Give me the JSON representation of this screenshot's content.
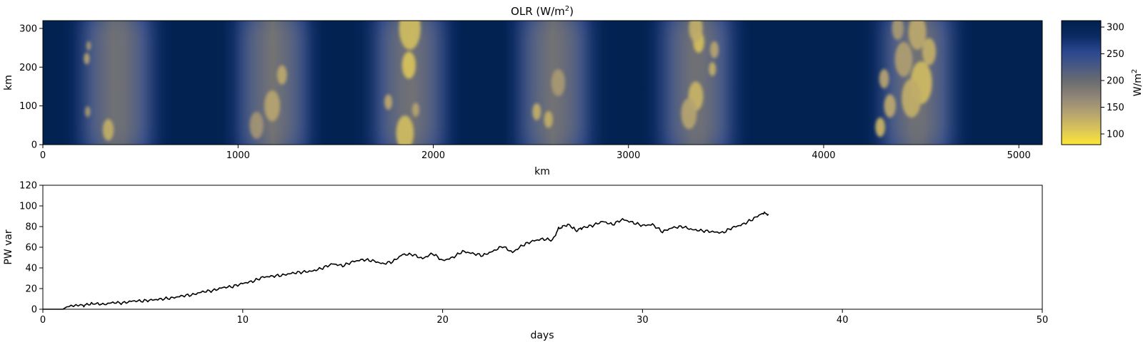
{
  "chart_data": [
    {
      "type": "heatmap",
      "title_main": "OLR (W/m",
      "title_sup": "2",
      "title_end": ")",
      "xlabel": "km",
      "ylabel": "km",
      "xlim": [
        0,
        5120
      ],
      "ylim": [
        0,
        320
      ],
      "xticks": [
        "0",
        "1000",
        "2000",
        "3000",
        "4000",
        "5000"
      ],
      "xtick_values": [
        0,
        1000,
        2000,
        3000,
        4000,
        5000
      ],
      "yticks": [
        "0",
        "100",
        "200",
        "300"
      ],
      "ytick_values": [
        0,
        100,
        200,
        300
      ],
      "colorbar": {
        "label_main": "W/m",
        "label_sup": "2",
        "range": [
          80,
          312
        ],
        "ticks": [
          "100",
          "150",
          "200",
          "250",
          "300"
        ],
        "tick_values": [
          100,
          150,
          200,
          250,
          300
        ],
        "colormap": "cividis (reversed)",
        "colors": [
          "#fde737",
          "#d9c45a",
          "#b6a46f",
          "#928877",
          "#6d6e6f",
          "#4a5a82",
          "#2a478f",
          "#0a2a63",
          "#00204d"
        ]
      },
      "convective_bands_x_km": [
        380,
        1180,
        1880,
        2620,
        3350,
        4480
      ],
      "cells": [
        {
          "x": 1880,
          "y": 300,
          "r": 55,
          "v": 118
        },
        {
          "x": 1875,
          "y": 205,
          "r": 35,
          "v": 112
        },
        {
          "x": 1855,
          "y": 30,
          "r": 45,
          "v": 118
        },
        {
          "x": 1770,
          "y": 110,
          "r": 20,
          "v": 135
        },
        {
          "x": 1910,
          "y": 90,
          "r": 18,
          "v": 140
        },
        {
          "x": 335,
          "y": 38,
          "r": 28,
          "v": 130
        },
        {
          "x": 225,
          "y": 222,
          "r": 15,
          "v": 140
        },
        {
          "x": 235,
          "y": 255,
          "r": 12,
          "v": 150
        },
        {
          "x": 230,
          "y": 85,
          "r": 14,
          "v": 150
        },
        {
          "x": 1225,
          "y": 180,
          "r": 25,
          "v": 135
        },
        {
          "x": 1175,
          "y": 100,
          "r": 40,
          "v": 140
        },
        {
          "x": 1095,
          "y": 50,
          "r": 35,
          "v": 155
        },
        {
          "x": 2530,
          "y": 85,
          "r": 22,
          "v": 130
        },
        {
          "x": 2590,
          "y": 65,
          "r": 22,
          "v": 130
        },
        {
          "x": 2640,
          "y": 160,
          "r": 35,
          "v": 150
        },
        {
          "x": 3360,
          "y": 265,
          "r": 28,
          "v": 115
        },
        {
          "x": 3345,
          "y": 125,
          "r": 38,
          "v": 125
        },
        {
          "x": 3310,
          "y": 80,
          "r": 40,
          "v": 140
        },
        {
          "x": 3440,
          "y": 245,
          "r": 22,
          "v": 140
        },
        {
          "x": 3345,
          "y": 300,
          "r": 35,
          "v": 130
        },
        {
          "x": 3430,
          "y": 195,
          "r": 18,
          "v": 130
        },
        {
          "x": 4500,
          "y": 160,
          "r": 55,
          "v": 120
        },
        {
          "x": 4450,
          "y": 120,
          "r": 50,
          "v": 130
        },
        {
          "x": 4340,
          "y": 100,
          "r": 30,
          "v": 135
        },
        {
          "x": 4310,
          "y": 170,
          "r": 25,
          "v": 140
        },
        {
          "x": 4410,
          "y": 220,
          "r": 45,
          "v": 145
        },
        {
          "x": 4540,
          "y": 240,
          "r": 35,
          "v": 130
        },
        {
          "x": 4290,
          "y": 45,
          "r": 25,
          "v": 125
        },
        {
          "x": 4480,
          "y": 290,
          "r": 45,
          "v": 135
        },
        {
          "x": 4380,
          "y": 300,
          "r": 30,
          "v": 150
        }
      ]
    },
    {
      "type": "line",
      "xlabel": "days",
      "ylabel": "PW var",
      "xlim": [
        0,
        50
      ],
      "ylim": [
        0,
        120
      ],
      "xticks": [
        "0",
        "10",
        "20",
        "30",
        "40",
        "50"
      ],
      "xtick_values": [
        0,
        10,
        20,
        30,
        40,
        50
      ],
      "yticks": [
        "0",
        "20",
        "40",
        "60",
        "80",
        "100",
        "120"
      ],
      "ytick_values": [
        0,
        20,
        40,
        60,
        80,
        100,
        120
      ],
      "series": [
        {
          "x": [
            0,
            1,
            1.3,
            2,
            2.3,
            2.7,
            3,
            3.5,
            4,
            4.5,
            5,
            5.5,
            6,
            6.5,
            7,
            7.5,
            8,
            8.5,
            9,
            9.5,
            10,
            10.5,
            11,
            11.5,
            12,
            12.5,
            13,
            13.5,
            14,
            14.5,
            15,
            15.5,
            16,
            16.5,
            17,
            17.5,
            18,
            18.5,
            19,
            19.5,
            20,
            20.5,
            21,
            21.5,
            22,
            22.5,
            23,
            23.5,
            24,
            24.5,
            25,
            25.5,
            25.8,
            26,
            26.3,
            26.7,
            27,
            27.5,
            28,
            28.5,
            29,
            29.5,
            30,
            30.5,
            31,
            31.5,
            32,
            32.5,
            33,
            33.5,
            34,
            34.5,
            35,
            35.5,
            36,
            36.3
          ],
          "y": [
            0,
            0,
            3.5,
            3.5,
            5,
            5.5,
            4.5,
            6.5,
            6,
            8,
            8,
            9,
            10,
            11,
            13,
            14,
            17,
            18,
            21,
            22,
            25,
            27,
            31,
            32,
            33,
            35,
            36,
            37,
            40,
            44,
            42,
            46,
            48,
            47,
            44,
            46,
            53,
            53,
            49,
            54,
            47,
            50,
            56,
            54,
            52,
            56,
            61,
            55,
            62,
            66,
            68,
            67,
            78,
            80,
            82,
            76,
            79,
            81,
            85,
            82,
            87,
            84,
            81,
            82,
            75,
            79,
            80,
            77,
            76,
            75,
            74,
            79,
            82,
            87,
            93,
            92
          ],
          "color": "#000000"
        }
      ]
    }
  ]
}
